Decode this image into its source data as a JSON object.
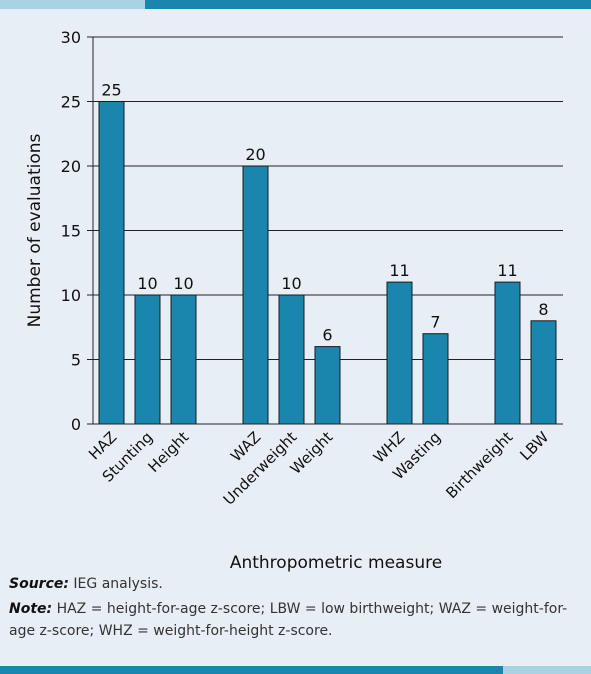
{
  "chart_data": {
    "type": "bar",
    "categories": [
      "HAZ",
      "Stunting",
      "Height",
      "WAZ",
      "Underweight",
      "Weight",
      "WHZ",
      "Wasting",
      "Birthweight",
      "LBW"
    ],
    "groups": [
      [
        0,
        1,
        2
      ],
      [
        3,
        4,
        5
      ],
      [
        6,
        7
      ],
      [
        8,
        9
      ]
    ],
    "values": [
      25,
      10,
      10,
      20,
      10,
      6,
      11,
      7,
      11,
      8
    ],
    "xlabel": "Anthropometric measure",
    "ylabel": "Number of evaluations",
    "ylim": [
      0,
      30
    ],
    "yticks": [
      0,
      5,
      10,
      15,
      20,
      25,
      30
    ],
    "grid": true,
    "bar_color": "#1a86ad"
  },
  "footer": {
    "source_label": "Source:",
    "source_text": " IEG analysis.",
    "note_label": "Note:",
    "note_text": " HAZ = height-for-age z-score; LBW = low birthweight; WAZ = weight-for-age z-score; WHZ = weight-for-height z-score."
  },
  "colors": {
    "accent": "#1a86ad",
    "accent_light": "#a9d2e3",
    "panel": "#e8eef5"
  }
}
